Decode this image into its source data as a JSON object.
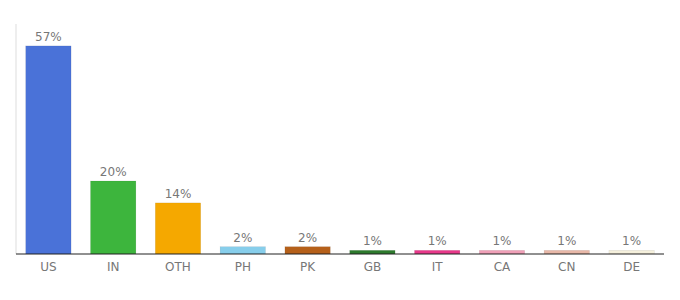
{
  "chart_data": {
    "type": "bar",
    "categories": [
      "US",
      "IN",
      "OTH",
      "PH",
      "PK",
      "GB",
      "IT",
      "CA",
      "CN",
      "DE"
    ],
    "values": [
      57,
      20,
      14,
      2,
      2,
      1,
      1,
      1,
      1,
      1
    ],
    "value_labels": [
      "57%",
      "20%",
      "14%",
      "2%",
      "2%",
      "1%",
      "1%",
      "1%",
      "1%",
      "1%"
    ],
    "colors": [
      "#4a72d8",
      "#3db53d",
      "#f5a800",
      "#87ceeb",
      "#b5601a",
      "#2d7a2d",
      "#e8388a",
      "#f0a0b8",
      "#e8b8a8",
      "#f5f0dc"
    ],
    "ylim": [
      0,
      63
    ],
    "data_labels": true,
    "tick_labels": "x",
    "grid": false
  }
}
